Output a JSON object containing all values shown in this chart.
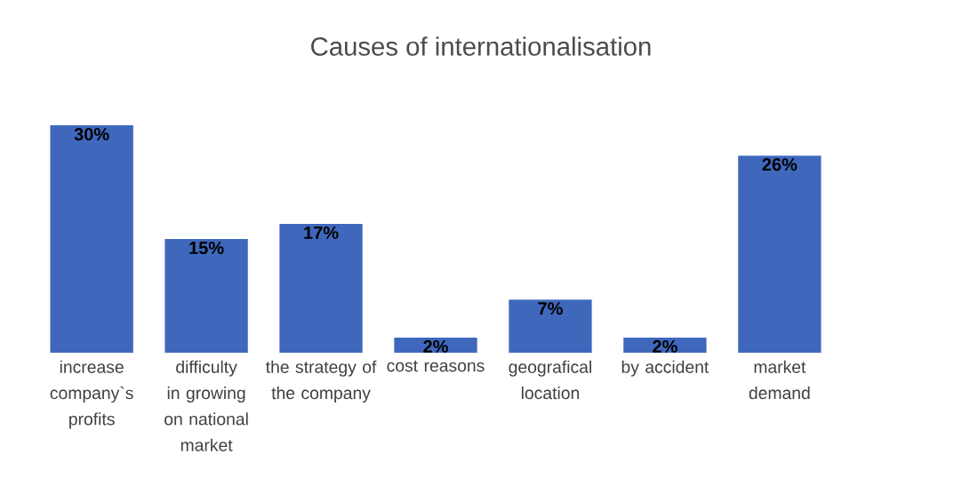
{
  "chart_data": {
    "type": "bar",
    "title": "Causes of internationalisation",
    "categories": [
      "increase company`s profits",
      "difficulty in growing on national market",
      "the strategy of the company",
      "cost reasons",
      "geografical location",
      "by accident",
      "market demand"
    ],
    "values": [
      30,
      15,
      17,
      2,
      7,
      2,
      26
    ],
    "value_labels": [
      "30%",
      "15%",
      "17%",
      "2%",
      "7%",
      "2%",
      "26%"
    ],
    "color": "#3f68bd"
  }
}
